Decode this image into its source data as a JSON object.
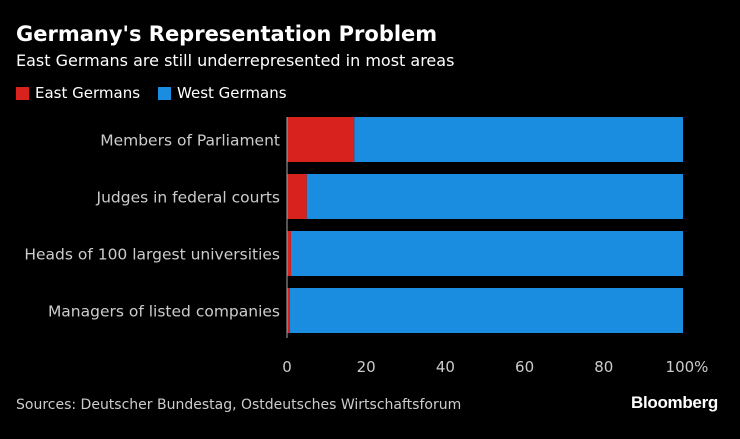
{
  "header": {
    "title": "Germany's Representation Problem",
    "subtitle": "East Germans are still underrepresented in most areas"
  },
  "colors": {
    "east": "#d7221e",
    "west": "#1b8de0",
    "background": "#000000"
  },
  "chart_data": {
    "type": "bar",
    "orientation": "horizontal",
    "stacked": true,
    "title": "Germany's Representation Problem",
    "subtitle": "East Germans are still underrepresented in most areas",
    "categories": [
      "Members of Parliament",
      "Judges in federal courts",
      "Heads of 100 largest universities",
      "Managers of listed companies"
    ],
    "series": [
      {
        "name": "East Germans",
        "values": [
          17,
          5,
          1,
          0.7
        ]
      },
      {
        "name": "West Germans",
        "values": [
          83,
          95,
          99,
          99.3
        ]
      }
    ],
    "xlim": [
      0,
      100
    ],
    "x_ticks": [
      "0",
      "20",
      "40",
      "60",
      "80",
      "100%"
    ],
    "legend_placement": "top-left",
    "grid": false
  },
  "footer": {
    "source": "Sources: Deutscher Bundestag, Ostdeutsches Wirtschaftsforum",
    "brand": "Bloomberg"
  }
}
